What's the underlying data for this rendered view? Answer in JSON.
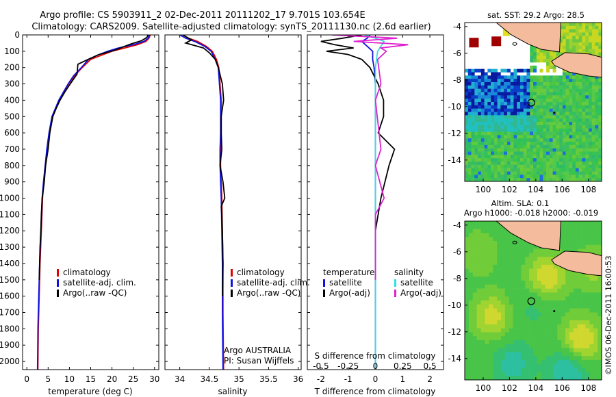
{
  "header": {
    "line1": "Argo profile: CS 5903911_2 02-Dec-2011 20111202_17 9.701S 103.654E",
    "line2": "Climatology: CARS2009. Satellite-adjusted climatology: synTS_20111130.nc (2.6d earlier)"
  },
  "colors": {
    "climatology": "#e00000",
    "satellite": "#1010e0",
    "argo": "#000000",
    "sat_salinity": "#30e0e0",
    "argo_salinity": "#e020d0",
    "land": "#f4bc9c"
  },
  "depth_axis": {
    "range": [
      0,
      2050
    ],
    "ticks": [
      "0",
      "100",
      "200",
      "300",
      "400",
      "500",
      "600",
      "700",
      "800",
      "900",
      "1000",
      "1100",
      "1200",
      "1300",
      "1400",
      "1500",
      "1600",
      "1700",
      "1800",
      "1900",
      "2000"
    ]
  },
  "chart_data": [
    {
      "type": "line",
      "id": "temperature",
      "xlabel": "temperature (deg C)",
      "xlim": [
        -1,
        31
      ],
      "xticks": [
        "0",
        "5",
        "10",
        "15",
        "20",
        "25",
        "30"
      ],
      "legend": [
        "climatology",
        "satellite-adj. clim.",
        "Argo(..raw -QC)"
      ],
      "series": [
        {
          "name": "climatology",
          "x": [
            29.0,
            28.7,
            28.0,
            26.0,
            23.0,
            20.0,
            17.5,
            15.0,
            13.0,
            11.2,
            9.8,
            8.7,
            7.6,
            6.8,
            6.0,
            5.3,
            4.8,
            4.4,
            4.0,
            3.7,
            3.4,
            3.1,
            2.9,
            2.7,
            2.6
          ],
          "y": [
            0,
            20,
            40,
            60,
            80,
            100,
            125,
            150,
            200,
            250,
            300,
            350,
            400,
            450,
            500,
            600,
            700,
            800,
            900,
            1000,
            1200,
            1400,
            1600,
            1800,
            2050
          ]
        },
        {
          "name": "satellite-adj. clim.",
          "x": [
            28.8,
            28.5,
            27.5,
            25.0,
            21.5,
            19.0,
            16.5,
            14.5,
            12.8,
            11.0,
            9.7,
            8.6,
            7.5,
            6.7,
            5.9,
            5.2,
            4.7,
            4.3,
            3.9,
            3.6,
            3.3,
            3.0,
            2.8,
            2.6,
            2.5
          ],
          "y": [
            0,
            20,
            40,
            60,
            80,
            100,
            125,
            150,
            200,
            250,
            300,
            350,
            400,
            450,
            500,
            600,
            700,
            800,
            900,
            1000,
            1200,
            1400,
            1600,
            1800,
            2050
          ]
        },
        {
          "name": "Argo(..raw -QC)",
          "x": [
            28.5,
            28.2,
            27.0,
            24.5,
            22.5,
            20.5,
            17.0,
            14.8,
            12.0,
            11.8,
            10.2,
            8.9,
            7.8,
            6.9,
            6.1,
            5.4,
            5.0,
            4.4,
            4.1,
            3.6,
            3.4,
            3.3,
            3.1,
            3.0,
            2.9
          ],
          "y": [
            0,
            15,
            35,
            55,
            75,
            95,
            120,
            145,
            180,
            240,
            300,
            350,
            400,
            450,
            500,
            600,
            700,
            800,
            900,
            1000,
            1100,
            1200,
            1300,
            1400,
            1500
          ]
        }
      ]
    },
    {
      "type": "line",
      "id": "salinity",
      "xlabel": "salinity",
      "xlim": [
        33.75,
        36.05
      ],
      "xticks": [
        "34",
        "34.5",
        "35",
        "35.5",
        "36"
      ],
      "legend": [
        "climatology",
        "satellite-adj. clim.",
        "Argo(..raw -QC)"
      ],
      "annotation": [
        "Argo AUSTRALIA",
        "PI: Susan Wijffels"
      ],
      "series": [
        {
          "name": "climatology",
          "x": [
            34.05,
            34.15,
            34.3,
            34.45,
            34.55,
            34.62,
            34.66,
            34.68,
            34.7,
            34.7,
            34.7,
            34.69,
            34.69,
            34.7,
            34.71,
            34.72,
            34.73,
            34.73,
            34.74
          ],
          "y": [
            0,
            20,
            40,
            70,
            100,
            150,
            200,
            300,
            400,
            500,
            600,
            700,
            800,
            900,
            1000,
            1200,
            1400,
            1700,
            2050
          ]
        },
        {
          "name": "satellite-adj. clim.",
          "x": [
            34.0,
            34.1,
            34.25,
            34.42,
            34.53,
            34.6,
            34.65,
            34.67,
            34.69,
            34.69,
            34.69,
            34.68,
            34.68,
            34.69,
            34.7,
            34.71,
            34.72,
            34.72,
            34.73
          ],
          "y": [
            0,
            20,
            40,
            70,
            100,
            150,
            200,
            300,
            400,
            500,
            600,
            700,
            800,
            900,
            1000,
            1200,
            1400,
            1700,
            2050
          ]
        },
        {
          "name": "Argo(..raw -QC)",
          "x": [
            34.05,
            34.2,
            34.1,
            34.4,
            34.5,
            34.6,
            34.65,
            34.72,
            34.74,
            34.7,
            34.7,
            34.71,
            34.68,
            34.73,
            34.76,
            34.7,
            34.71,
            34.72,
            34.73,
            34.72
          ],
          "y": [
            0,
            30,
            50,
            80,
            110,
            150,
            200,
            300,
            400,
            500,
            600,
            700,
            800,
            900,
            1000,
            1050,
            1100,
            1200,
            1400,
            1600
          ]
        }
      ]
    },
    {
      "type": "line",
      "id": "differences",
      "xlabel": "T difference from climatology",
      "xlim": [
        -2.5,
        2.5
      ],
      "xticks": [
        "-2",
        "-1",
        "0",
        "1",
        "2"
      ],
      "secondary_xlabel": "S difference from climatology",
      "secondary_xticks": [
        "-0.5",
        "-0.25",
        "0",
        "0.25",
        "0.5"
      ],
      "legend_temperature": [
        "temperature",
        "satellite",
        "Argo(-adj)"
      ],
      "legend_salinity": [
        "salinity",
        "satellite",
        "Argo(-adj)"
      ],
      "series": [
        {
          "name": "temperature satellite",
          "x": [
            -0.2,
            -0.3,
            -0.5,
            -0.3,
            -0.1,
            -0.1,
            -0.05,
            0,
            0,
            0,
            0,
            0,
            0,
            0
          ],
          "y": [
            0,
            20,
            40,
            70,
            100,
            150,
            200,
            300,
            500,
            800,
            1100,
            1400,
            1700,
            2050
          ]
        },
        {
          "name": "temperature Argo(-adj)",
          "x": [
            -0.5,
            -1.2,
            -2.0,
            -1.5,
            -0.8,
            -1.8,
            -1.0,
            -0.5,
            -0.2,
            0.1,
            0.3,
            0.3,
            0.1,
            0.7,
            0.5,
            0.2,
            0.1,
            0.0,
            0.0,
            0.0
          ],
          "y": [
            0,
            20,
            40,
            60,
            80,
            100,
            120,
            150,
            200,
            300,
            400,
            500,
            600,
            700,
            800,
            1000,
            1100,
            1200,
            1400,
            1500
          ]
        },
        {
          "name": "salinity satellite",
          "x": [
            -0.1,
            0.0,
            0.08,
            0.05,
            0.02,
            0.01,
            0.0,
            0.0,
            0.0,
            0.0,
            0.0,
            0.0
          ],
          "y": [
            0,
            20,
            40,
            70,
            100,
            150,
            200,
            300,
            500,
            1000,
            1500,
            2050
          ]
        },
        {
          "name": "salinity Argo(-adj)",
          "x": [
            -0.4,
            0.2,
            -0.2,
            0.3,
            0.05,
            0.1,
            0.02,
            0.05,
            0.0,
            0.05,
            0.0,
            0.08,
            0.0,
            0.0,
            0.0
          ],
          "y": [
            0,
            20,
            40,
            60,
            80,
            100,
            150,
            300,
            400,
            700,
            800,
            1000,
            1100,
            1300,
            1500
          ]
        }
      ]
    },
    {
      "type": "heatmap",
      "id": "sst_map",
      "title": "sat. SST: 29.2 Argo: 28.5",
      "xlim": [
        98.6,
        109
      ],
      "ylim": [
        -15.6,
        -3.7
      ],
      "xticks": [
        "100",
        "102",
        "104",
        "106",
        "108"
      ],
      "yticks": [
        "-4",
        "-6",
        "-8",
        "-10",
        "-12",
        "-14"
      ],
      "argo_position": [
        103.654,
        -9.701
      ]
    },
    {
      "type": "heatmap",
      "id": "sla_map",
      "title": "Altim. SLA: 0.1",
      "subtitle": "Argo h1000: -0.018 h2000: -0.019",
      "xlim": [
        98.6,
        109
      ],
      "ylim": [
        -15.6,
        -3.7
      ],
      "xticks": [
        "100",
        "102",
        "104",
        "106",
        "108"
      ],
      "yticks": [
        "-4",
        "-6",
        "-8",
        "-10",
        "-12",
        "-14"
      ],
      "argo_position": [
        103.654,
        -9.701
      ]
    }
  ],
  "footer_stamp": "©IMOS 06-Dec-2011 16:00:53"
}
